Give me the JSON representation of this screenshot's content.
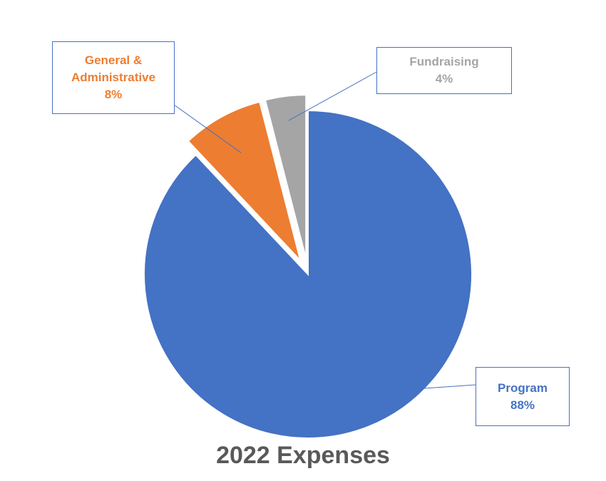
{
  "chart_data": {
    "type": "pie",
    "title": "2022 Expenses",
    "slices": [
      {
        "label": "Program",
        "value": 88,
        "value_label": "88%",
        "color": "#4472c4",
        "exploded": false
      },
      {
        "label": "General & Administrative",
        "label_lines": [
          "General &",
          "Administrative"
        ],
        "value": 8,
        "value_label": "8%",
        "color": "#ed7d31",
        "exploded": true
      },
      {
        "label": "Fundraising",
        "value": 4,
        "value_label": "4%",
        "color": "#a5a5a5",
        "exploded": true
      }
    ],
    "start_angle": "12 o'clock",
    "direction": "clockwise",
    "labels": "callouts with leader lines",
    "legend": "none"
  }
}
